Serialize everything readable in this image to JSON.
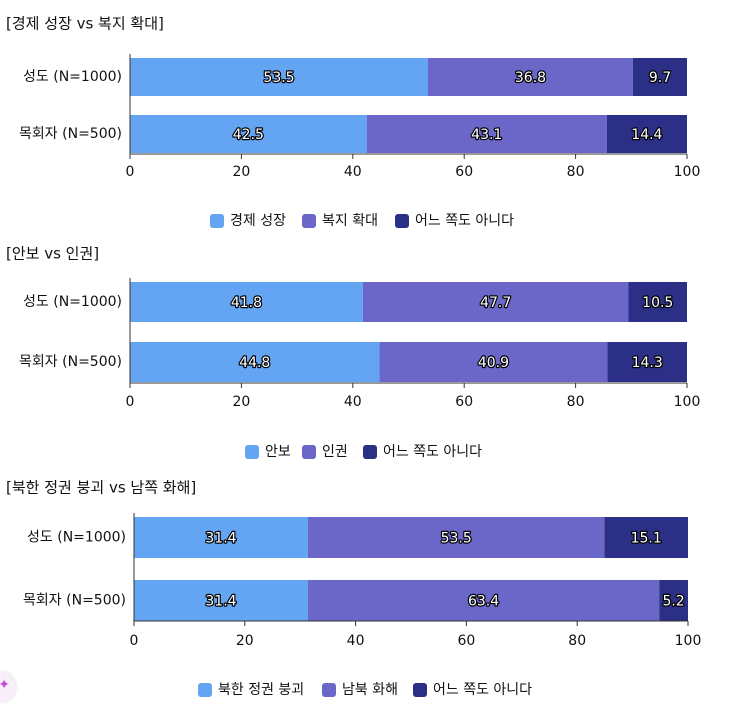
{
  "colors": {
    "series1": "#64a5f3",
    "series2": "#6a67c9",
    "series3": "#2b2f85"
  },
  "chart_data": [
    {
      "type": "bar",
      "orientation": "horizontal",
      "stacked": true,
      "title": "[경제 성장 vs 복지 확대]",
      "categories": [
        "성도 (N=1000)",
        "목회자 (N=500)"
      ],
      "series": [
        {
          "name": "경제 성장",
          "values": [
            53.5,
            42.5
          ]
        },
        {
          "name": "복지 확대",
          "values": [
            36.8,
            43.1
          ]
        },
        {
          "name": "어느 쪽도 아니다",
          "values": [
            9.7,
            14.4
          ]
        }
      ],
      "xlim": [
        0,
        100
      ],
      "xticks": [
        0,
        20,
        40,
        60,
        80,
        100
      ],
      "legend": "bottom"
    },
    {
      "type": "bar",
      "orientation": "horizontal",
      "stacked": true,
      "title": "[안보 vs 인권]",
      "categories": [
        "성도 (N=1000)",
        "목회자 (N=500)"
      ],
      "series": [
        {
          "name": "안보",
          "values": [
            41.8,
            44.8
          ]
        },
        {
          "name": "인권",
          "values": [
            47.7,
            40.9
          ]
        },
        {
          "name": "어느 쪽도 아니다",
          "values": [
            10.5,
            14.3
          ]
        }
      ],
      "xlim": [
        0,
        100
      ],
      "xticks": [
        0,
        20,
        40,
        60,
        80,
        100
      ],
      "legend": "bottom"
    },
    {
      "type": "bar",
      "orientation": "horizontal",
      "stacked": true,
      "title": "[북한 정권 붕괴 vs 남쪽 화해]",
      "categories": [
        "성도 (N=1000)",
        "목회자 (N=500)"
      ],
      "series": [
        {
          "name": "북한 정권 붕괴",
          "values": [
            31.4,
            31.4
          ]
        },
        {
          "name": "남북 화해",
          "values": [
            53.5,
            63.4
          ]
        },
        {
          "name": "어느 쪽도 아니다",
          "values": [
            15.1,
            5.2
          ]
        }
      ],
      "xlim": [
        0,
        100
      ],
      "xticks": [
        0,
        20,
        40,
        60,
        80,
        100
      ],
      "legend": "bottom"
    }
  ]
}
